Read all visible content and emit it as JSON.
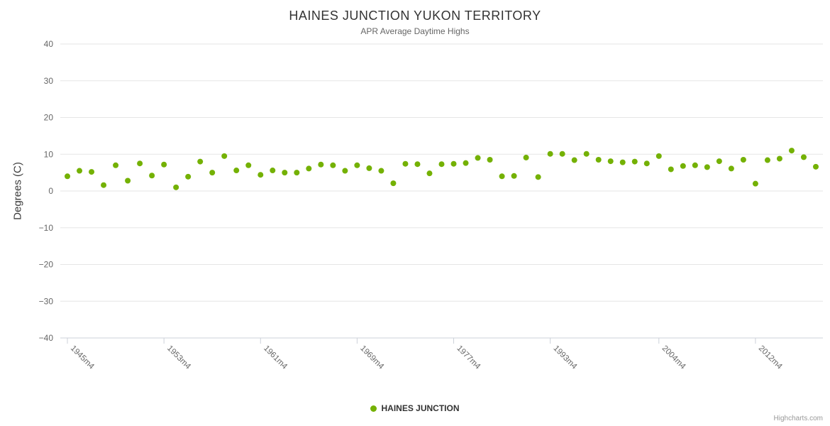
{
  "credits": "Highcharts.com",
  "chart_data": {
    "type": "scatter",
    "title": "HAINES JUNCTION YUKON TERRITORY",
    "subtitle": "APR Average Daytime Highs",
    "xlabel": "",
    "ylabel": "Degrees (C)",
    "ylim": [
      -40,
      40
    ],
    "ytick_step": 10,
    "grid": true,
    "grid_color": "#e6e6e6",
    "axis_color": "#ccd1d9",
    "tick_label_color": "#666666",
    "legend_position": "bottom-center",
    "xticks": [
      {
        "index": 0,
        "label": "1945m4"
      },
      {
        "index": 8,
        "label": "1953m4"
      },
      {
        "index": 16,
        "label": "1961m4"
      },
      {
        "index": 24,
        "label": "1969m4"
      },
      {
        "index": 32,
        "label": "1977m4"
      },
      {
        "index": 40,
        "label": "1993m4"
      },
      {
        "index": 49,
        "label": "2004m4"
      },
      {
        "index": 57,
        "label": "2012m4"
      }
    ],
    "series": [
      {
        "name": "HAINES JUNCTION",
        "color": "#74B104",
        "marker": "circle",
        "values": [
          4,
          5.5,
          5.2,
          1.6,
          7,
          2.8,
          7.5,
          4.2,
          7.2,
          1,
          3.9,
          8,
          5,
          9.5,
          5.6,
          7,
          4.4,
          5.6,
          5,
          5,
          6.1,
          7.2,
          7,
          5.5,
          7,
          6.2,
          5.5,
          2.1,
          7.4,
          7.3,
          4.8,
          7.3,
          7.4,
          7.6,
          9,
          8.5,
          4,
          4.1,
          9.1,
          3.8,
          10.1,
          10.1,
          8.4,
          10.1,
          8.5,
          8.1,
          7.8,
          8,
          7.5,
          9.5,
          5.9,
          6.8,
          7,
          6.5,
          8.1,
          6.1,
          8.5,
          2,
          8.4,
          8.8,
          11,
          9.2,
          6.6
        ]
      }
    ]
  }
}
